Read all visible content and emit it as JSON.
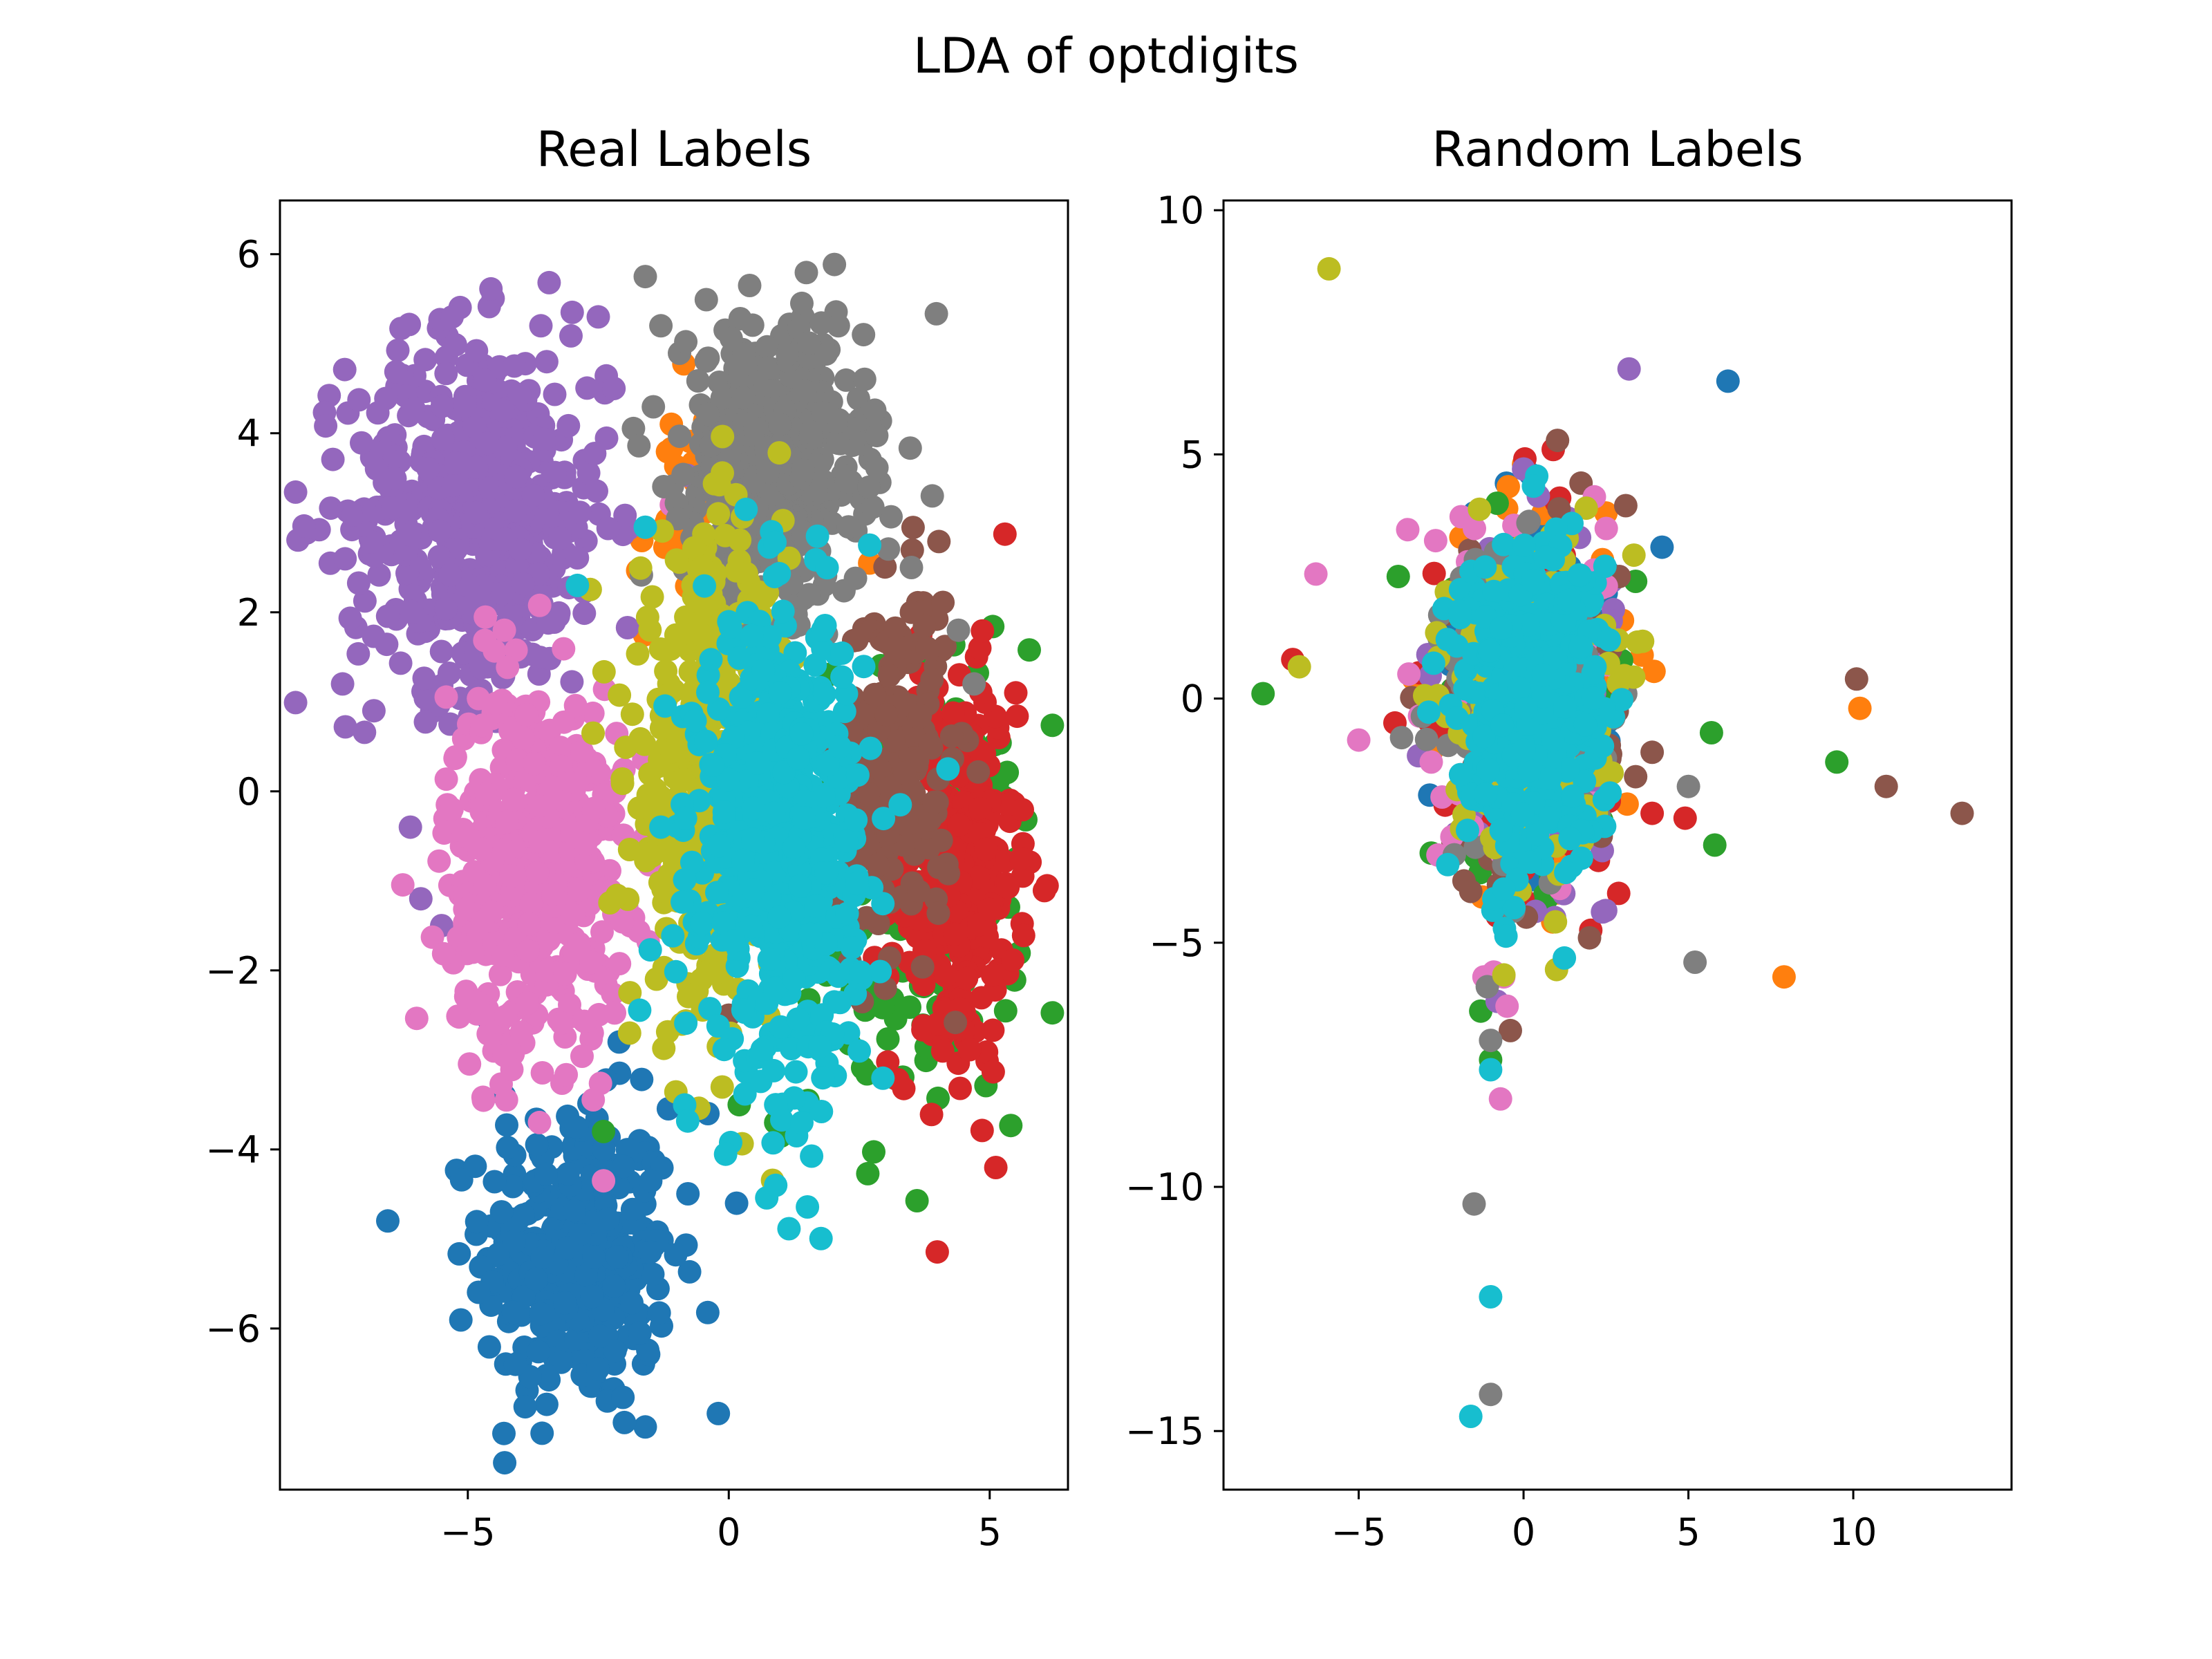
{
  "figure": {
    "title": "LDA of optdigits",
    "palette": [
      "#1f77b4",
      "#ff7f0e",
      "#2ca02c",
      "#d62728",
      "#9467bd",
      "#8c564b",
      "#e377c2",
      "#7f7f7f",
      "#bcbd22",
      "#17becf"
    ]
  },
  "chart_data": [
    {
      "type": "scatter",
      "title": "Real Labels",
      "xlabel": "",
      "ylabel": "",
      "xlim": [
        -8.6,
        6.5
      ],
      "ylim": [
        -7.8,
        6.6
      ],
      "xticks": [
        -5,
        0,
        5
      ],
      "xtick_labels": [
        "−5",
        "0",
        "5"
      ],
      "yticks": [
        -6,
        -4,
        -2,
        0,
        2,
        4,
        6
      ],
      "ytick_labels": [
        "−6",
        "−4",
        "−2",
        "0",
        "2",
        "4",
        "6"
      ],
      "grid": false,
      "legend": "none",
      "series": [
        {
          "color": "#1f77b4",
          "cluster": {
            "cx": -2.9,
            "cy": -5.2,
            "sx": 0.9,
            "sy": 0.85,
            "n": 360
          },
          "points": [
            [
              -0.2,
              -6.95
            ],
            [
              -1.6,
              -7.1
            ],
            [
              -2.0,
              -7.05
            ],
            [
              -4.3,
              -3.4
            ],
            [
              -4.6,
              -2.55
            ],
            [
              0.15,
              -4.6
            ],
            [
              -0.4,
              -3.6
            ],
            [
              -2.1,
              -2.8
            ]
          ]
        },
        {
          "color": "#ff7f0e",
          "cluster": {
            "cx": -0.8,
            "cy": 3.0,
            "sx": 0.5,
            "sy": 0.7,
            "n": 40
          },
          "points": [
            [
              -1.1,
              4.1
            ],
            [
              -0.9,
              3.6
            ],
            [
              -1.2,
              3.0
            ],
            [
              2.7,
              2.55
            ]
          ]
        },
        {
          "color": "#2ca02c",
          "cluster": {
            "cx": 3.6,
            "cy": -1.0,
            "sx": 1.0,
            "sy": 1.3,
            "n": 180
          },
          "points": [
            [
              1.0,
              -3.85
            ],
            [
              0.2,
              -3.5
            ],
            [
              0.9,
              -3.7
            ],
            [
              -2.4,
              -3.8
            ],
            [
              5.0,
              -0.9
            ],
            [
              5.5,
              -0.3
            ],
            [
              4.3,
              -2.2
            ]
          ]
        },
        {
          "color": "#d62728",
          "cluster": {
            "cx": 4.3,
            "cy": -0.9,
            "sx": 0.6,
            "sy": 1.1,
            "n": 320
          },
          "points": [
            [
              5.5,
              1.1
            ],
            [
              4.1,
              -2.9
            ],
            [
              5.6,
              -0.75
            ],
            [
              3.2,
              1.7
            ],
            [
              4.0,
              -2.6
            ]
          ]
        },
        {
          "color": "#9467bd",
          "cluster": {
            "cx": -4.8,
            "cy": 3.1,
            "sx": 1.25,
            "sy": 1.0,
            "n": 520
          },
          "points": [
            [
              -5.3,
              5.3
            ],
            [
              -3.0,
              5.35
            ],
            [
              -2.5,
              5.3
            ],
            [
              -7.4,
              1.2
            ],
            [
              -6.8,
              0.9
            ],
            [
              -6.1,
              -0.4
            ],
            [
              -5.9,
              -1.2
            ],
            [
              -5.5,
              -1.5
            ],
            [
              -2.2,
              4.5
            ],
            [
              -3.6,
              5.2
            ]
          ]
        },
        {
          "color": "#8c564b",
          "cluster": {
            "cx": 3.2,
            "cy": 0.3,
            "sx": 0.55,
            "sy": 1.0,
            "n": 220
          },
          "points": [
            [
              3.5,
              2.0
            ],
            [
              3.8,
              1.6
            ],
            [
              3.0,
              -2.2
            ],
            [
              0.0,
              -2.5
            ]
          ]
        },
        {
          "color": "#e377c2",
          "cluster": {
            "cx": -3.7,
            "cy": -0.8,
            "sx": 0.85,
            "sy": 1.0,
            "n": 520
          },
          "points": [
            [
              -2.4,
              -4.35
            ],
            [
              -4.7,
              -3.45
            ],
            [
              -4.5,
              -2.9
            ],
            [
              -4.3,
              -2.95
            ],
            [
              -4.3,
              1.8
            ],
            [
              -1.1,
              3.2
            ]
          ]
        },
        {
          "color": "#7f7f7f",
          "cluster": {
            "cx": 0.9,
            "cy": 3.7,
            "sx": 0.85,
            "sy": 0.75,
            "n": 480
          },
          "points": [
            [
              -1.6,
              5.75
            ],
            [
              0.4,
              5.65
            ],
            [
              1.4,
              5.45
            ],
            [
              2.1,
              5.2
            ],
            [
              -1.3,
              5.2
            ],
            [
              4.4,
              1.8
            ],
            [
              4.7,
              1.2
            ],
            [
              3.9,
              3.3
            ],
            [
              3.5,
              2.5
            ]
          ]
        },
        {
          "color": "#bcbd22",
          "cluster": {
            "cx": -0.4,
            "cy": 0.1,
            "sx": 0.75,
            "sy": 1.3,
            "n": 420
          },
          "points": [
            [
              -0.2,
              3.1
            ],
            [
              -1.9,
              -0.65
            ],
            [
              -2.6,
              0.65
            ],
            [
              -1.9,
              -2.7
            ],
            [
              -0.9,
              -2.6
            ],
            [
              -0.2,
              -2.85
            ]
          ]
        },
        {
          "color": "#17becf",
          "cluster": {
            "cx": 1.0,
            "cy": -0.6,
            "sx": 0.75,
            "sy": 1.25,
            "n": 650
          },
          "points": [
            [
              0.9,
              -4.4
            ],
            [
              -2.9,
              2.3
            ],
            [
              -1.6,
              2.95
            ],
            [
              1.7,
              2.85
            ],
            [
              2.7,
              2.75
            ],
            [
              0.9,
              -3.5
            ],
            [
              1.4,
              -3.7
            ],
            [
              4.2,
              0.25
            ],
            [
              2.5,
              -2.9
            ],
            [
              1.8,
              -3.2
            ],
            [
              -1.3,
              -0.4
            ]
          ]
        }
      ]
    },
    {
      "type": "scatter",
      "title": "Random Labels",
      "xlabel": "",
      "ylabel": "",
      "xlim": [
        -9.1,
        14.8
      ],
      "ylim": [
        -16.2,
        10.2
      ],
      "xticks": [
        -5,
        0,
        5,
        10
      ],
      "xtick_labels": [
        "−5",
        "0",
        "5",
        "10"
      ],
      "yticks": [
        -15,
        -10,
        -5,
        0,
        5,
        10
      ],
      "ytick_labels": [
        "−15",
        "−10",
        "−5",
        "0",
        "5",
        "10"
      ],
      "grid": false,
      "legend": "none",
      "series": [
        {
          "color": "#1f77b4",
          "cluster": {
            "cx": 0.2,
            "cy": 0.0,
            "sx": 1.15,
            "sy": 1.6,
            "n": 170
          },
          "points": [
            [
              6.2,
              6.5
            ],
            [
              4.2,
              3.1
            ],
            [
              -1.5,
              3.8
            ],
            [
              1.4,
              2.7
            ],
            [
              0.2,
              4.6
            ]
          ]
        },
        {
          "color": "#ff7f0e",
          "cluster": {
            "cx": 0.2,
            "cy": 0.0,
            "sx": 1.15,
            "sy": 1.6,
            "n": 170
          },
          "points": [
            [
              7.9,
              -5.7
            ],
            [
              10.2,
              -0.2
            ],
            [
              -3.1,
              0.1
            ],
            [
              2.5,
              3.8
            ],
            [
              0.0,
              4.8
            ],
            [
              3.0,
              1.6
            ]
          ]
        },
        {
          "color": "#2ca02c",
          "cluster": {
            "cx": 0.2,
            "cy": 0.0,
            "sx": 1.15,
            "sy": 1.6,
            "n": 170
          },
          "points": [
            [
              -7.9,
              0.1
            ],
            [
              9.5,
              -1.3
            ],
            [
              5.7,
              -0.7
            ],
            [
              5.8,
              -3.0
            ],
            [
              -3.8,
              2.5
            ],
            [
              -1.3,
              -6.4
            ],
            [
              0.7,
              -4.1
            ],
            [
              -0.8,
              4.0
            ],
            [
              -1.0,
              -7.4
            ],
            [
              3.4,
              2.4
            ]
          ]
        },
        {
          "color": "#d62728",
          "cluster": {
            "cx": 0.2,
            "cy": 0.0,
            "sx": 1.15,
            "sy": 1.6,
            "n": 170
          },
          "points": [
            [
              -7.0,
              0.8
            ],
            [
              3.9,
              -2.35
            ],
            [
              4.9,
              -2.45
            ],
            [
              0.9,
              5.1
            ],
            [
              -3.9,
              -0.5
            ],
            [
              2.6,
              -2.1
            ]
          ]
        },
        {
          "color": "#9467bd",
          "cluster": {
            "cx": 0.2,
            "cy": 0.0,
            "sx": 1.15,
            "sy": 1.6,
            "n": 170
          },
          "points": [
            [
              3.2,
              6.75
            ],
            [
              1.7,
              3.3
            ],
            [
              0.0,
              4.7
            ],
            [
              -0.8,
              -6.2
            ],
            [
              -2.9,
              0.9
            ]
          ]
        },
        {
          "color": "#8c564b",
          "cluster": {
            "cx": 0.2,
            "cy": 0.0,
            "sx": 1.15,
            "sy": 1.6,
            "n": 170
          },
          "points": [
            [
              10.1,
              0.4
            ],
            [
              11.0,
              -1.8
            ],
            [
              13.3,
              -2.35
            ],
            [
              2.0,
              -4.9
            ],
            [
              3.1,
              3.95
            ],
            [
              -0.4,
              -6.8
            ],
            [
              -1.6,
              -3.95
            ],
            [
              3.9,
              -1.1
            ],
            [
              3.4,
              -1.6
            ],
            [
              2.9,
              2.5
            ]
          ]
        },
        {
          "color": "#e377c2",
          "cluster": {
            "cx": 0.2,
            "cy": 0.0,
            "sx": 1.15,
            "sy": 1.6,
            "n": 170
          },
          "points": [
            [
              -6.3,
              2.55
            ],
            [
              -5.0,
              -0.85
            ],
            [
              -0.7,
              -8.2
            ],
            [
              -0.9,
              -5.6
            ],
            [
              -1.2,
              -5.7
            ],
            [
              -0.6,
              -5.7
            ],
            [
              -2.8,
              -1.3
            ],
            [
              -0.5,
              -6.3
            ],
            [
              -1.7,
              2.8
            ]
          ]
        },
        {
          "color": "#7f7f7f",
          "cluster": {
            "cx": 0.2,
            "cy": 0.0,
            "sx": 1.15,
            "sy": 1.6,
            "n": 170
          },
          "points": [
            [
              -1.5,
              -10.35
            ],
            [
              -1.0,
              -14.25
            ],
            [
              5.2,
              -5.4
            ],
            [
              5.0,
              -1.8
            ],
            [
              -1.1,
              -5.9
            ],
            [
              -0.3,
              -4.35
            ],
            [
              -3.7,
              -0.8
            ],
            [
              -1.0,
              -7.0
            ],
            [
              -0.6,
              -3.4
            ],
            [
              -2.1,
              -3.2
            ],
            [
              3.1,
              0.1
            ]
          ]
        },
        {
          "color": "#bcbd22",
          "cluster": {
            "cx": 0.2,
            "cy": 0.0,
            "sx": 1.15,
            "sy": 1.6,
            "n": 170
          },
          "points": [
            [
              -5.9,
              8.8
            ],
            [
              -6.8,
              0.65
            ],
            [
              1.0,
              -5.55
            ],
            [
              1.9,
              3.9
            ],
            [
              -0.1,
              3.1
            ]
          ]
        },
        {
          "color": "#17becf",
          "cluster": {
            "cx": 0.2,
            "cy": 0.0,
            "sx": 1.05,
            "sy": 1.55,
            "n": 520
          },
          "points": [
            [
              -1.6,
              -14.7
            ],
            [
              -1.0,
              -12.25
            ],
            [
              -1.0,
              -7.6
            ],
            [
              -0.9,
              -4.1
            ],
            [
              -0.6,
              -3.9
            ],
            [
              -2.3,
              -3.4
            ],
            [
              -1.7,
              -2.7
            ],
            [
              0.2,
              -3.35
            ],
            [
              0.3,
              4.35
            ],
            [
              2.6,
              1.2
            ]
          ]
        }
      ]
    }
  ]
}
